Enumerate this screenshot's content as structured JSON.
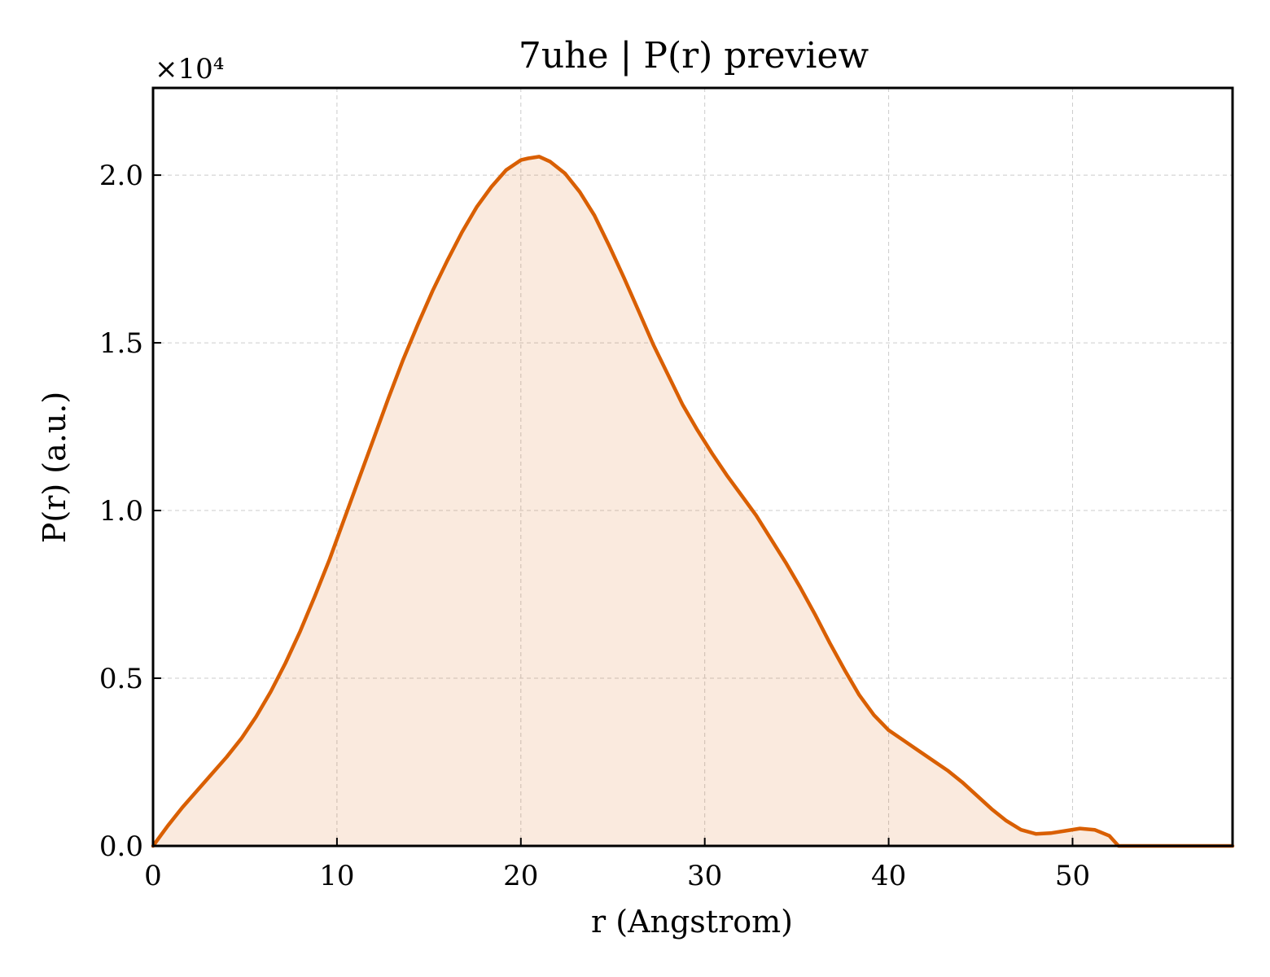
{
  "chart_data": {
    "type": "area",
    "title": "7uhe | P(r) preview",
    "xlabel": "r (Angstrom)",
    "ylabel": "P(r) (a.u.)",
    "y_multiplier_label": "×10⁴",
    "y_scale": 10000,
    "xlim": [
      0,
      58.7
    ],
    "ylim": [
      0,
      22600
    ],
    "xticks": [
      0,
      10,
      20,
      30,
      40,
      50
    ],
    "xtick_labels": [
      "0",
      "10",
      "20",
      "30",
      "40",
      "50"
    ],
    "yticks": [
      0,
      5000,
      10000,
      15000,
      20000
    ],
    "ytick_labels": [
      "0.0",
      "0.5",
      "1.0",
      "1.5",
      "2.0"
    ],
    "grid": true,
    "line_color": "#d95f02",
    "fill_color": "#d95f02",
    "fill_opacity": 0.13,
    "series": [
      {
        "x": [
          0,
          0.8,
          1.6,
          2.4,
          3.2,
          4.0,
          4.8,
          5.6,
          6.4,
          7.2,
          8.0,
          8.8,
          9.6,
          10.4,
          11.2,
          12.0,
          12.8,
          13.6,
          14.4,
          15.2,
          16.0,
          16.8,
          17.6,
          18.4,
          19.2,
          20.0,
          20.4,
          21.0,
          21.6,
          22.4,
          23.2,
          24.0,
          24.8,
          25.6,
          26.4,
          27.2,
          28.0,
          28.8,
          29.6,
          30.4,
          31.2,
          32.0,
          32.8,
          33.6,
          34.4,
          35.2,
          36.0,
          36.8,
          37.6,
          38.4,
          39.2,
          40.0,
          40.8,
          41.6,
          42.4,
          43.2,
          44.0,
          44.8,
          45.6,
          46.4,
          47.2,
          48.0,
          48.8,
          49.6,
          50.4,
          51.2,
          52.0,
          52.5,
          53.2,
          54.0,
          54.8,
          55.6,
          56.4,
          57.2,
          57.2,
          58.0,
          58.7
        ],
        "y": [
          0,
          600,
          1150,
          1650,
          2150,
          2650,
          3200,
          3850,
          4600,
          5450,
          6400,
          7450,
          8550,
          9750,
          10950,
          12150,
          13350,
          14500,
          15550,
          16550,
          17450,
          18300,
          19050,
          19650,
          20150,
          20450,
          20500,
          20550,
          20400,
          20050,
          19500,
          18800,
          17900,
          16950,
          15950,
          14950,
          14050,
          13150,
          12400,
          11700,
          11050,
          10450,
          9850,
          9150,
          8450,
          7700,
          6900,
          6050,
          5250,
          4500,
          3900,
          3450,
          3150,
          2850,
          2550,
          2250,
          1900,
          1500,
          1100,
          750,
          480,
          360,
          380,
          450,
          520,
          480,
          300,
          0,
          0,
          0,
          0,
          0,
          0,
          0,
          0,
          0,
          0
        ]
      }
    ]
  }
}
